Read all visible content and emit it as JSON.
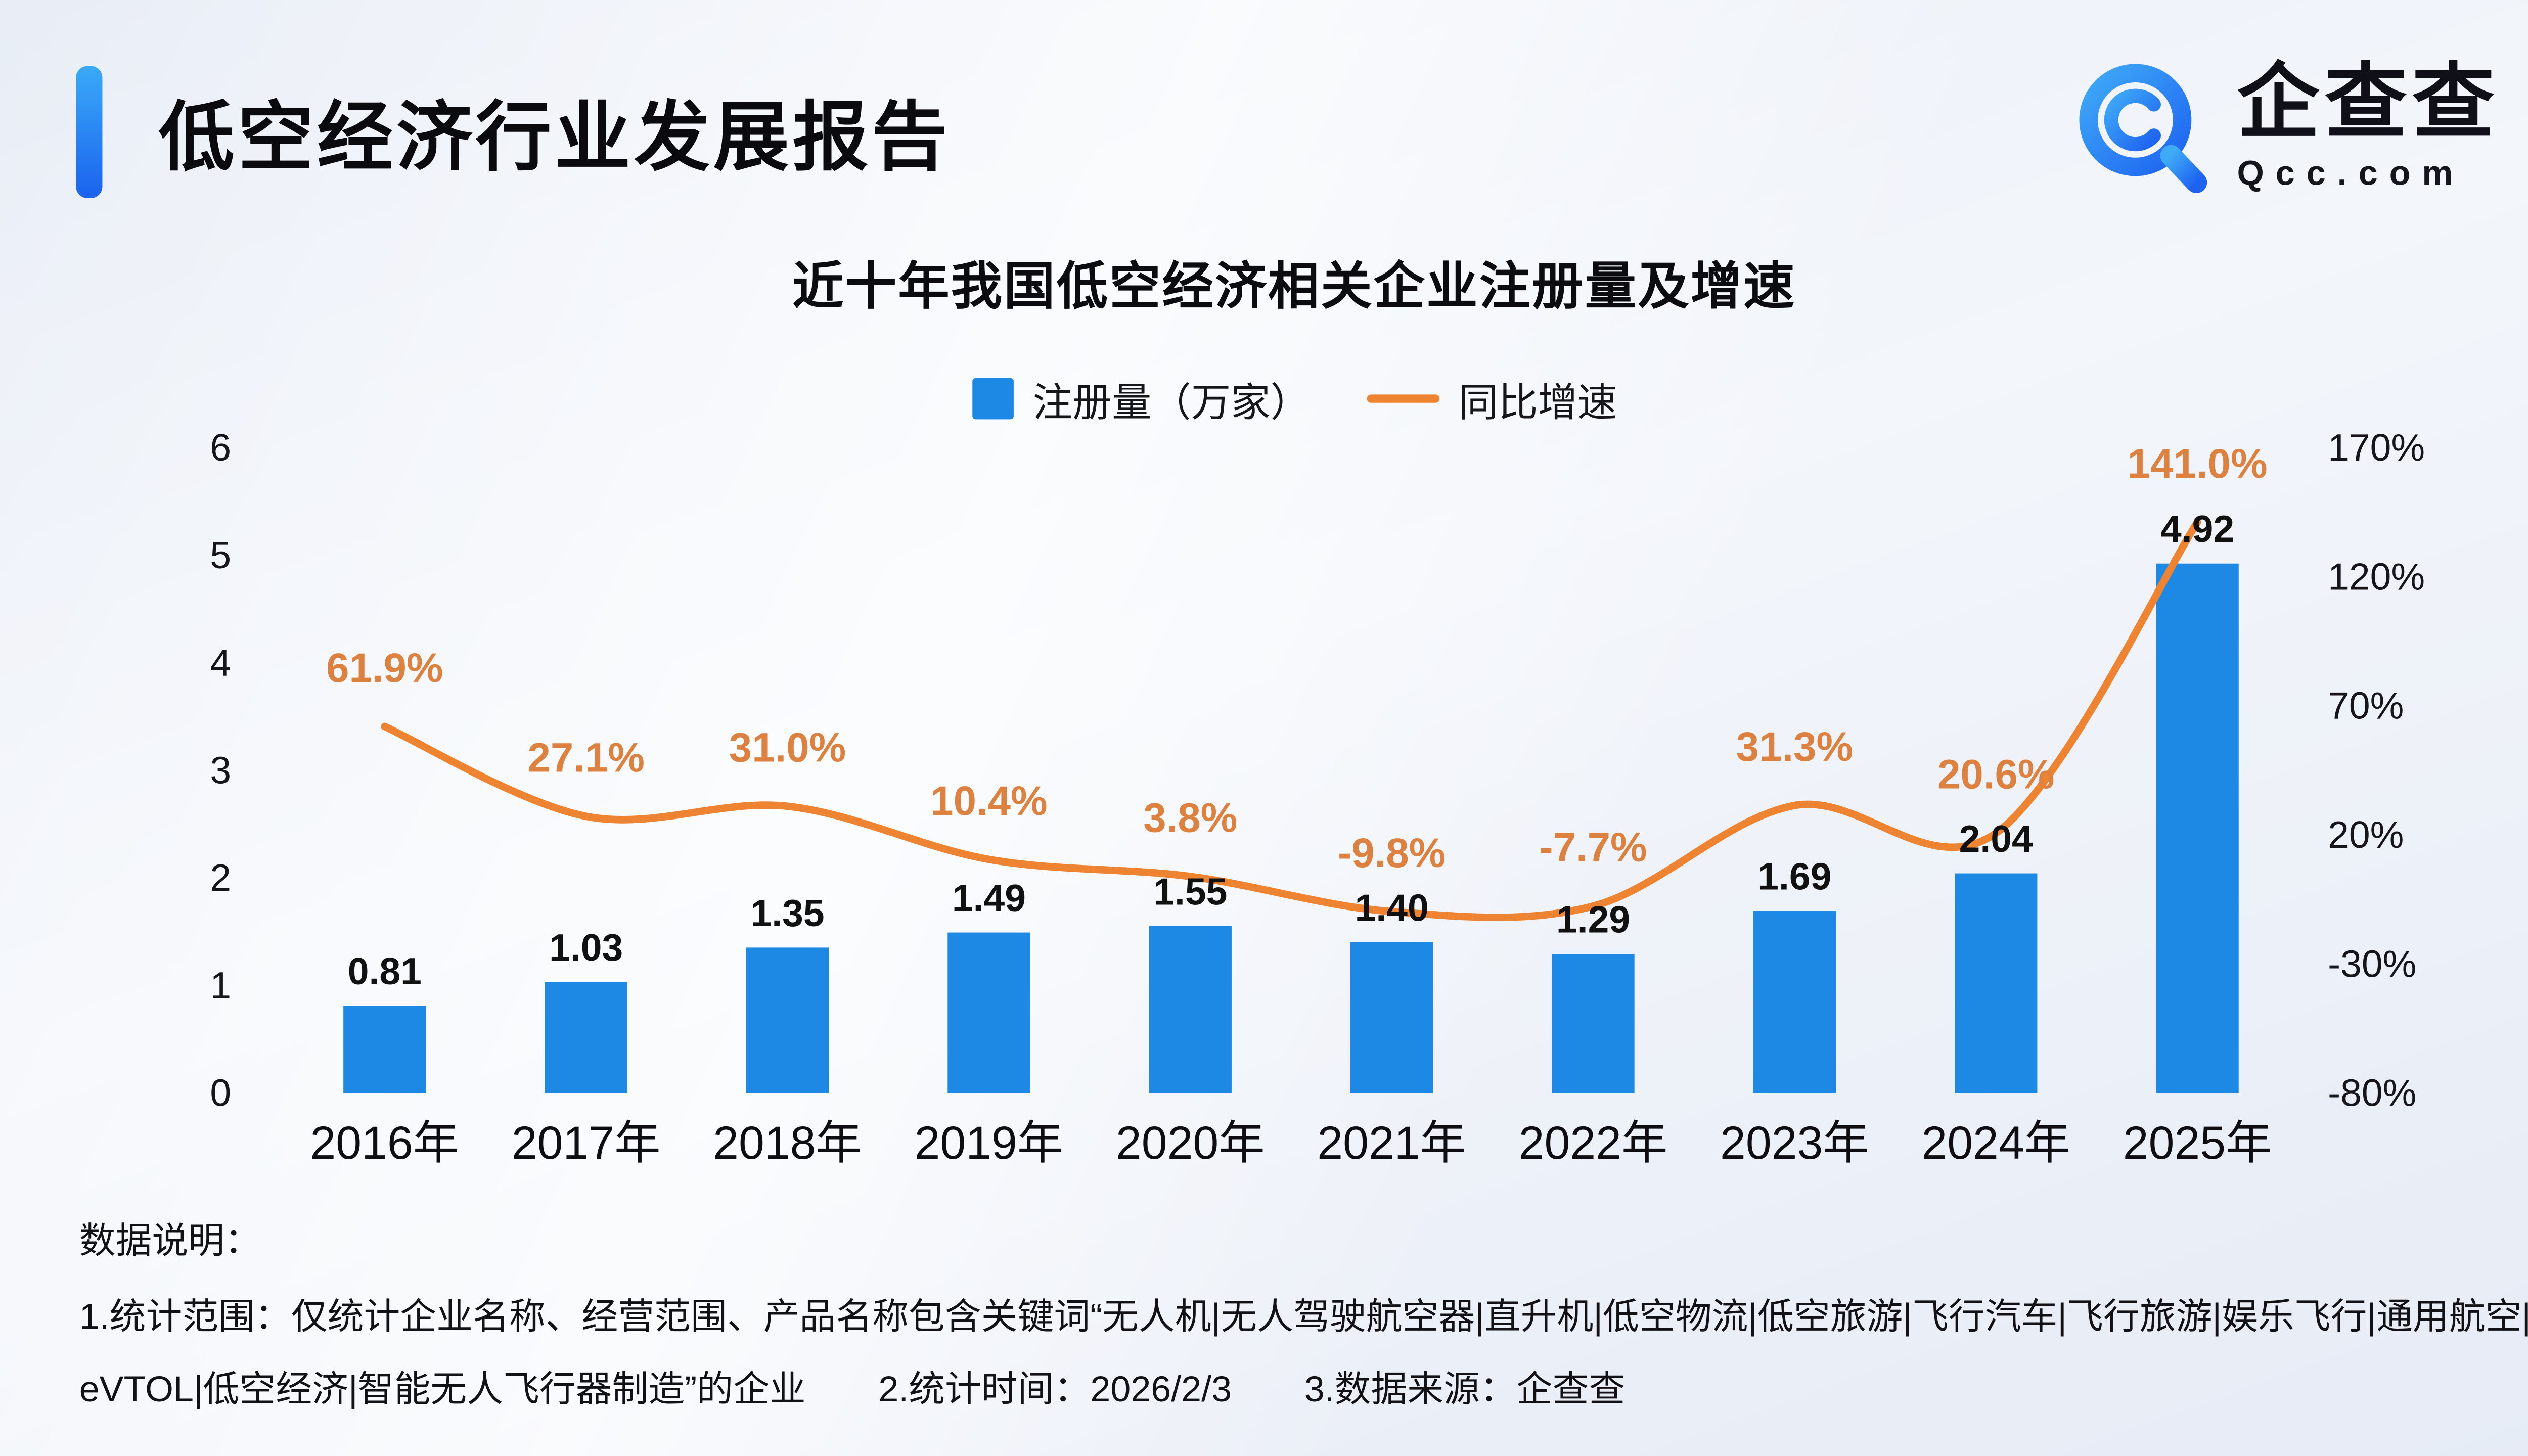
{
  "header": {
    "title": "低空经济行业发展报告"
  },
  "brand": {
    "name": "企查查",
    "domain": "Qcc.com",
    "logo_color": "#2E7CF6"
  },
  "chart_data": {
    "type": "bar",
    "subtype": "bar+line combo",
    "title": "近十年我国低空经济相关企业注册量及增速",
    "categories": [
      "2016年",
      "2017年",
      "2018年",
      "2019年",
      "2020年",
      "2021年",
      "2022年",
      "2023年",
      "2024年",
      "2025年"
    ],
    "series": [
      {
        "name": "注册量（万家）",
        "type": "bar",
        "axis": "left",
        "color": "#1E88E5",
        "values": [
          0.81,
          1.03,
          1.35,
          1.49,
          1.55,
          1.4,
          1.29,
          1.69,
          2.04,
          4.92
        ],
        "labels": [
          "0.81",
          "1.03",
          "1.35",
          "1.49",
          "1.55",
          "1.40",
          "1.29",
          "1.69",
          "2.04",
          "4.92"
        ],
        "label_color": "#111111"
      },
      {
        "name": "同比增速",
        "type": "line",
        "axis": "right",
        "color": "#EE8432",
        "values": [
          61.9,
          27.1,
          31.0,
          10.4,
          3.8,
          -9.8,
          -7.7,
          31.3,
          20.6,
          141.0
        ],
        "labels": [
          "61.9%",
          "27.1%",
          "31.0%",
          "10.4%",
          "3.8%",
          "-9.8%",
          "-7.7%",
          "31.3%",
          "20.6%",
          "141.0%"
        ],
        "label_color": "#DD8141"
      }
    ],
    "left_axis": {
      "min": 0,
      "max": 6,
      "ticks": [
        0,
        1,
        2,
        3,
        4,
        5,
        6
      ]
    },
    "right_axis": {
      "min": -80,
      "max": 170,
      "tick_values": [
        -80,
        -30,
        20,
        70,
        120,
        170
      ],
      "ticks": [
        "-80%",
        "-30%",
        "20%",
        "70%",
        "120%",
        "170%"
      ]
    },
    "grid": false,
    "legend_position": "top"
  },
  "footer": {
    "heading": "数据说明：",
    "note": "1.统计范围：仅统计企业名称、经营范围、产品名称包含关键词“无人机|无人驾驶航空器|直升机|低空物流|低空旅游|飞行汽车|飞行旅游|娱乐飞行|通用航空|eVTOL|低空经济|智能无人飞行器制造”的企业　　2.统计时间：2026/2/3　　3.数据来源：企查查"
  }
}
